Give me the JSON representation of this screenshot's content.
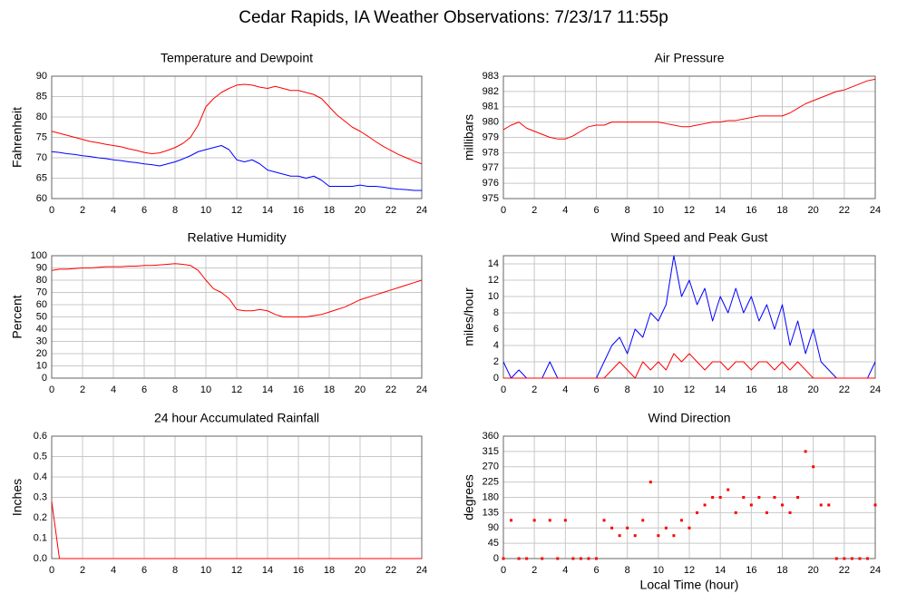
{
  "title": "Cedar Rapids, IA Weather Observations: 7/23/17 11:55p",
  "chart_data": [
    {
      "type": "line",
      "title": "Temperature and Dewpoint",
      "ylabel": "Fahrenheit",
      "x": [
        0,
        0.5,
        1,
        1.5,
        2,
        2.5,
        3,
        3.5,
        4,
        4.5,
        5,
        5.5,
        6,
        6.5,
        7,
        7.5,
        8,
        8.5,
        9,
        9.5,
        10,
        10.5,
        11,
        11.5,
        12,
        12.5,
        13,
        13.5,
        14,
        14.5,
        15,
        15.5,
        16,
        16.5,
        17,
        17.5,
        18,
        18.5,
        19,
        19.5,
        20,
        20.5,
        21,
        21.5,
        22,
        22.5,
        23,
        23.5,
        24
      ],
      "xlim": [
        0,
        24
      ],
      "xticks": [
        0,
        2,
        4,
        6,
        8,
        10,
        12,
        14,
        16,
        18,
        20,
        22,
        24
      ],
      "ylim": [
        60,
        90
      ],
      "yticks": [
        60,
        65,
        70,
        75,
        80,
        85,
        90
      ],
      "grid": true,
      "series": [
        {
          "color": "#ff0000",
          "values": [
            76.5,
            76,
            75.5,
            75,
            74.5,
            74,
            73.7,
            73.3,
            73,
            72.7,
            72.2,
            71.8,
            71.3,
            71,
            71.2,
            71.8,
            72.5,
            73.5,
            75,
            78,
            82.5,
            84.5,
            86,
            87,
            87.8,
            88,
            87.8,
            87.3,
            87,
            87.5,
            87,
            86.5,
            86.5,
            86,
            85.5,
            84.5,
            82.5,
            80.5,
            79,
            77.5,
            76.5,
            75.3,
            74,
            72.8,
            71.8,
            70.8,
            70,
            69.2,
            68.5
          ]
        },
        {
          "color": "#0000ff",
          "values": [
            71.5,
            71.3,
            71,
            70.8,
            70.5,
            70.3,
            70,
            69.8,
            69.5,
            69.3,
            69,
            68.8,
            68.5,
            68.3,
            68,
            68.5,
            69,
            69.7,
            70.5,
            71.5,
            72,
            72.5,
            73,
            72,
            69.5,
            69,
            69.5,
            68.5,
            67,
            66.5,
            66,
            65.5,
            65.5,
            65,
            65.5,
            64.5,
            63,
            63,
            63,
            63,
            63.3,
            63,
            63,
            62.8,
            62.5,
            62.3,
            62.2,
            62,
            62
          ]
        }
      ]
    },
    {
      "type": "line",
      "title": "Air Pressure",
      "ylabel": "millibars",
      "x": [
        0,
        0.5,
        1,
        1.5,
        2,
        2.5,
        3,
        3.5,
        4,
        4.5,
        5,
        5.5,
        6,
        6.5,
        7,
        7.5,
        8,
        8.5,
        9,
        9.5,
        10,
        10.5,
        11,
        11.5,
        12,
        12.5,
        13,
        13.5,
        14,
        14.5,
        15,
        15.5,
        16,
        16.5,
        17,
        17.5,
        18,
        18.5,
        19,
        19.5,
        20,
        20.5,
        21,
        21.5,
        22,
        22.5,
        23,
        23.5,
        24
      ],
      "xlim": [
        0,
        24
      ],
      "xticks": [
        0,
        2,
        4,
        6,
        8,
        10,
        12,
        14,
        16,
        18,
        20,
        22,
        24
      ],
      "ylim": [
        975,
        983
      ],
      "yticks": [
        975,
        976,
        977,
        978,
        979,
        980,
        981,
        982,
        983
      ],
      "grid": true,
      "series": [
        {
          "color": "#ff0000",
          "values": [
            979.5,
            979.8,
            980,
            979.6,
            979.4,
            979.2,
            979,
            978.9,
            978.9,
            979.1,
            979.4,
            979.7,
            979.8,
            979.8,
            980,
            980,
            980,
            980,
            980,
            980,
            980,
            979.9,
            979.8,
            979.7,
            979.7,
            979.8,
            979.9,
            980,
            980,
            980.1,
            980.1,
            980.2,
            980.3,
            980.4,
            980.4,
            980.4,
            980.4,
            980.6,
            980.9,
            981.2,
            981.4,
            981.6,
            981.8,
            982,
            982.1,
            982.3,
            982.5,
            982.7,
            982.8
          ]
        }
      ]
    },
    {
      "type": "line",
      "title": "Relative Humidity",
      "ylabel": "Percent",
      "x": [
        0,
        0.5,
        1,
        1.5,
        2,
        2.5,
        3,
        3.5,
        4,
        4.5,
        5,
        5.5,
        6,
        6.5,
        7,
        7.5,
        8,
        8.5,
        9,
        9.5,
        10,
        10.5,
        11,
        11.5,
        12,
        12.5,
        13,
        13.5,
        14,
        14.5,
        15,
        15.5,
        16,
        16.5,
        17,
        17.5,
        18,
        18.5,
        19,
        19.5,
        20,
        20.5,
        21,
        21.5,
        22,
        22.5,
        23,
        23.5,
        24
      ],
      "xlim": [
        0,
        24
      ],
      "xticks": [
        0,
        2,
        4,
        6,
        8,
        10,
        12,
        14,
        16,
        18,
        20,
        22,
        24
      ],
      "ylim": [
        0,
        100
      ],
      "yticks": [
        0,
        10,
        20,
        30,
        40,
        50,
        60,
        70,
        80,
        90,
        100
      ],
      "grid": true,
      "series": [
        {
          "color": "#ff0000",
          "values": [
            88,
            89,
            89,
            89.5,
            90,
            90,
            90.5,
            91,
            91,
            91,
            91.5,
            91.5,
            92,
            92,
            92.5,
            93,
            93.5,
            93,
            92,
            88,
            80,
            73,
            70,
            65,
            56,
            55,
            55,
            56,
            55,
            52,
            50,
            50,
            50,
            50,
            51,
            52,
            54,
            56,
            58,
            61,
            64,
            66,
            68,
            70,
            72,
            74,
            76,
            78,
            80
          ]
        }
      ]
    },
    {
      "type": "line",
      "title": "Wind Speed and Peak Gust",
      "ylabel": "miles/hour",
      "x": [
        0,
        0.5,
        1,
        1.5,
        2,
        2.5,
        3,
        3.5,
        4,
        4.5,
        5,
        5.5,
        6,
        6.5,
        7,
        7.5,
        8,
        8.5,
        9,
        9.5,
        10,
        10.5,
        11,
        11.5,
        12,
        12.5,
        13,
        13.5,
        14,
        14.5,
        15,
        15.5,
        16,
        16.5,
        17,
        17.5,
        18,
        18.5,
        19,
        19.5,
        20,
        20.5,
        21,
        21.5,
        22,
        22.5,
        23,
        23.5,
        24
      ],
      "xlim": [
        0,
        24
      ],
      "xticks": [
        0,
        2,
        4,
        6,
        8,
        10,
        12,
        14,
        16,
        18,
        20,
        22,
        24
      ],
      "ylim": [
        0,
        15
      ],
      "yticks": [
        0,
        2,
        4,
        6,
        8,
        10,
        12,
        14
      ],
      "grid": true,
      "series": [
        {
          "color": "#0000ff",
          "values": [
            2,
            0,
            1,
            0,
            0,
            0,
            2,
            0,
            0,
            0,
            0,
            0,
            0,
            2,
            4,
            5,
            3,
            6,
            5,
            8,
            7,
            9,
            15,
            10,
            12,
            9,
            11,
            7,
            10,
            8,
            11,
            8,
            10,
            7,
            9,
            6,
            9,
            4,
            7,
            3,
            6,
            2,
            1,
            0,
            0,
            0,
            0,
            0,
            2
          ]
        },
        {
          "color": "#ff0000",
          "values": [
            0,
            0,
            0,
            0,
            0,
            0,
            0,
            0,
            0,
            0,
            0,
            0,
            0,
            0,
            1,
            2,
            1,
            0,
            2,
            1,
            2,
            1,
            3,
            2,
            3,
            2,
            1,
            2,
            2,
            1,
            2,
            2,
            1,
            2,
            2,
            1,
            2,
            1,
            2,
            1,
            0,
            0,
            0,
            0,
            0,
            0,
            0,
            0,
            0
          ]
        }
      ]
    },
    {
      "type": "line",
      "title": "24 hour Accumulated Rainfall",
      "ylabel": "Inches",
      "x": [
        0,
        0.5,
        1,
        1.5,
        2,
        2.5,
        3,
        3.5,
        4,
        4.5,
        5,
        5.5,
        6,
        6.5,
        7,
        7.5,
        8,
        8.5,
        9,
        9.5,
        10,
        10.5,
        11,
        11.5,
        12,
        12.5,
        13,
        13.5,
        14,
        14.5,
        15,
        15.5,
        16,
        16.5,
        17,
        17.5,
        18,
        18.5,
        19,
        19.5,
        20,
        20.5,
        21,
        21.5,
        22,
        22.5,
        23,
        23.5,
        24
      ],
      "xlim": [
        0,
        24
      ],
      "xticks": [
        0,
        2,
        4,
        6,
        8,
        10,
        12,
        14,
        16,
        18,
        20,
        22,
        24
      ],
      "ylim": [
        0,
        0.6
      ],
      "yticks": [
        {
          "value": 0,
          "label": "0.0"
        },
        0.1,
        0.2,
        0.3,
        0.4,
        0.5,
        0.6
      ],
      "grid": true,
      "series": [
        {
          "color": "#ff0000",
          "values": [
            0.28,
            0,
            0,
            0,
            0,
            0,
            0,
            0,
            0,
            0,
            0,
            0,
            0,
            0,
            0,
            0,
            0,
            0,
            0,
            0,
            0,
            0,
            0,
            0,
            0,
            0,
            0,
            0,
            0,
            0,
            0,
            0,
            0,
            0,
            0,
            0,
            0,
            0,
            0,
            0,
            0,
            0,
            0,
            0,
            0,
            0,
            0,
            0,
            0
          ]
        }
      ]
    },
    {
      "type": "scatter",
      "title": "Wind Direction",
      "ylabel": "degrees",
      "xlabel": "Local Time (hour)",
      "x": [
        0,
        0.5,
        1,
        1.5,
        2,
        2.5,
        3,
        3.5,
        4,
        4.5,
        5,
        5.5,
        6,
        6.5,
        7,
        7.5,
        8,
        8.5,
        9,
        9.5,
        10,
        10.5,
        11,
        11.5,
        12,
        12.5,
        13,
        13.5,
        14,
        14.5,
        15,
        15.5,
        16,
        16.5,
        17,
        17.5,
        18,
        18.5,
        19,
        19.5,
        20,
        20.5,
        21,
        21.5,
        22,
        22.5,
        23,
        23.5,
        24
      ],
      "xlim": [
        0,
        24
      ],
      "xticks": [
        0,
        2,
        4,
        6,
        8,
        10,
        12,
        14,
        16,
        18,
        20,
        22,
        24
      ],
      "ylim": [
        0,
        360
      ],
      "yticks": [
        0,
        45,
        90,
        135,
        180,
        225,
        270,
        315,
        360
      ],
      "grid": true,
      "series": [
        {
          "color": "#ff0000",
          "values": [
            0,
            112.5,
            0,
            0,
            112.5,
            0,
            112.5,
            0,
            112.5,
            0,
            0,
            0,
            0,
            112.5,
            90,
            67.5,
            90,
            67.5,
            112.5,
            225,
            67.5,
            90,
            67.5,
            112.5,
            90,
            135,
            157.5,
            180,
            180,
            202.5,
            135,
            180,
            157.5,
            180,
            135,
            180,
            157.5,
            135,
            180,
            315,
            270,
            157.5,
            157.5,
            0,
            0,
            0,
            0,
            0,
            157.5
          ]
        }
      ]
    }
  ]
}
